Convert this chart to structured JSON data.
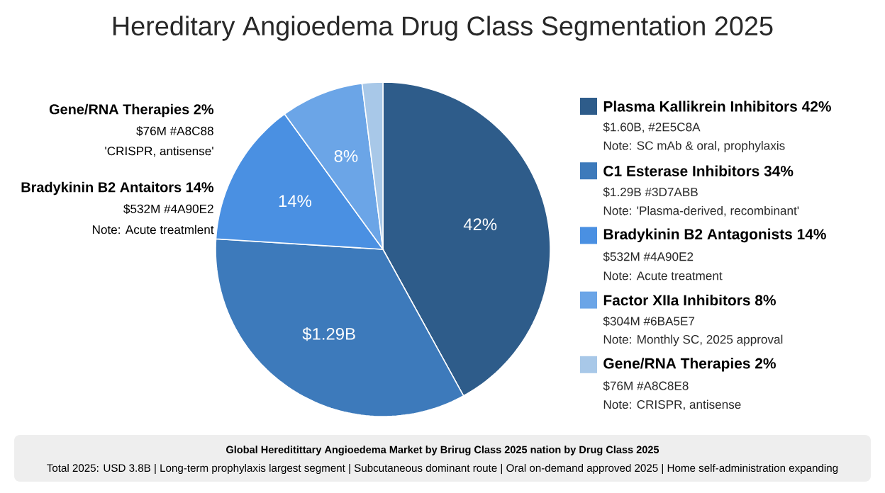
{
  "chart_data": {
    "type": "pie",
    "title": "Hereditary Angioedema Drug Class Segmentation 2025",
    "categories": [
      "Plasma Kallikrein Inhibitors 42%",
      "C1 Esterase Inhibitors 34%",
      "Bradykinin B2 Antagonists 14%",
      "Factor XIIa Inhibitors 8%",
      "Gene/RNA Therapies 2%"
    ],
    "values": [
      42,
      34,
      14,
      8,
      2
    ],
    "colors": [
      "#2e5c8a",
      "#3d7abb",
      "#4a90e2",
      "#6ba5e7",
      "#a8c8e8"
    ],
    "value_labels": [
      "42%",
      null,
      "14%",
      "8%",
      null
    ],
    "legend": "right",
    "annotations": [
      "Gene/RNA Therapies 2%",
      "$76M #A8C88",
      "'CRISPR, antisense'",
      "Bradykinin B2 Antaitors 14%",
      "$532M #4A90E2",
      "Note: Acute treatmlent",
      "$1.60B, #2E5C8A",
      "Note: SC mAb & oral, prophylaxis",
      "$1.29B #3D7ABB",
      "Note: 'Plasma-derived, recombinant'",
      "$532M #4A90E2",
      "Note: Acute treatment",
      "$304M #6BA5E7",
      "Note: Monthly SC, 2025 approval",
      "$76M #A8C8E8",
      "Note: CRISPR, antisense",
      "Global Hereditittary Angioedema Market by Brirug Class 2025 nation by Drug Class 2025",
      "Total 2025: USD 3.8B | Long-term prophylaxis largest segment | Subcutaneous dominant route | Oral on-demand approved 2025 | Home self-administration expanding",
      "$1.29B"
    ]
  }
}
